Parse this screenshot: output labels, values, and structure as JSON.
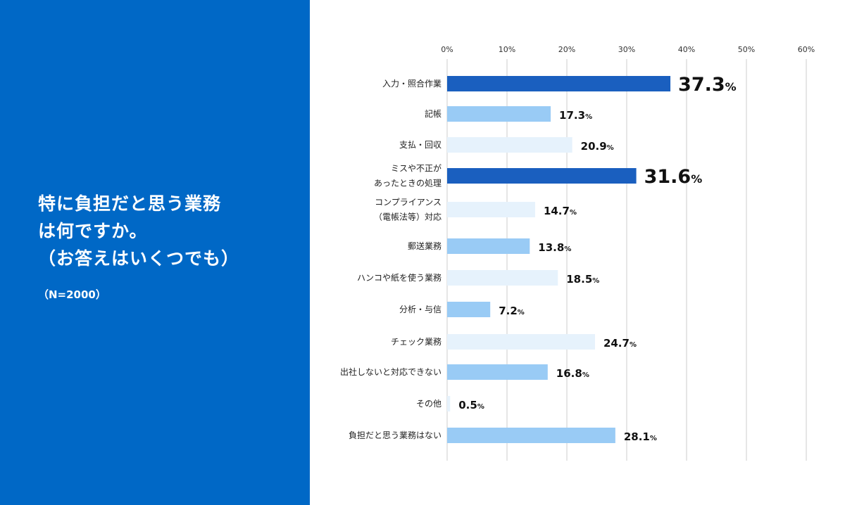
{
  "panel": {
    "question_lines": [
      "特に負担だと思う業務",
      "は何ですか。",
      "（お答えはいくつでも）"
    ],
    "sample": "（N=2000）"
  },
  "colors": {
    "panel_bg": "#0068c6",
    "dark": "#1a5fbf",
    "mid": "#99cbf5",
    "light": "#e6f2fc",
    "grid": "#cccccc"
  },
  "chart_data": {
    "type": "bar",
    "orientation": "horizontal",
    "xlim": [
      0,
      60
    ],
    "x_ticks": [
      "0%",
      "10%",
      "20%",
      "30%",
      "40%",
      "50%",
      "60%"
    ],
    "grid": true,
    "categories": [
      [
        "入力・照合作業"
      ],
      [
        "記帳"
      ],
      [
        "支払・回収"
      ],
      [
        "ミスや不正が",
        "あったときの処理"
      ],
      [
        "コンプライアンス",
        "（電帳法等）対応"
      ],
      [
        "郵送業務"
      ],
      [
        "ハンコや紙を使う業務"
      ],
      [
        "分析・与信"
      ],
      [
        "チェック業務"
      ],
      [
        "出社しないと対応できない"
      ],
      [
        "その他"
      ],
      [
        "負担だと思う業務はない"
      ]
    ],
    "values": [
      37.3,
      17.3,
      20.9,
      31.6,
      14.7,
      13.8,
      18.5,
      7.2,
      24.7,
      16.8,
      0.5,
      28.1
    ],
    "value_labels": [
      "37.3",
      "17.3",
      "20.9",
      "31.6",
      "14.7",
      "13.8",
      "18.5",
      "7.2",
      "24.7",
      "16.8",
      "0.5",
      "28.1"
    ],
    "unit": "%",
    "bar_shades": [
      "dark",
      "mid",
      "light",
      "dark",
      "light",
      "mid",
      "light",
      "mid",
      "light",
      "mid",
      "light",
      "mid"
    ],
    "highlighted": [
      0,
      3
    ]
  }
}
